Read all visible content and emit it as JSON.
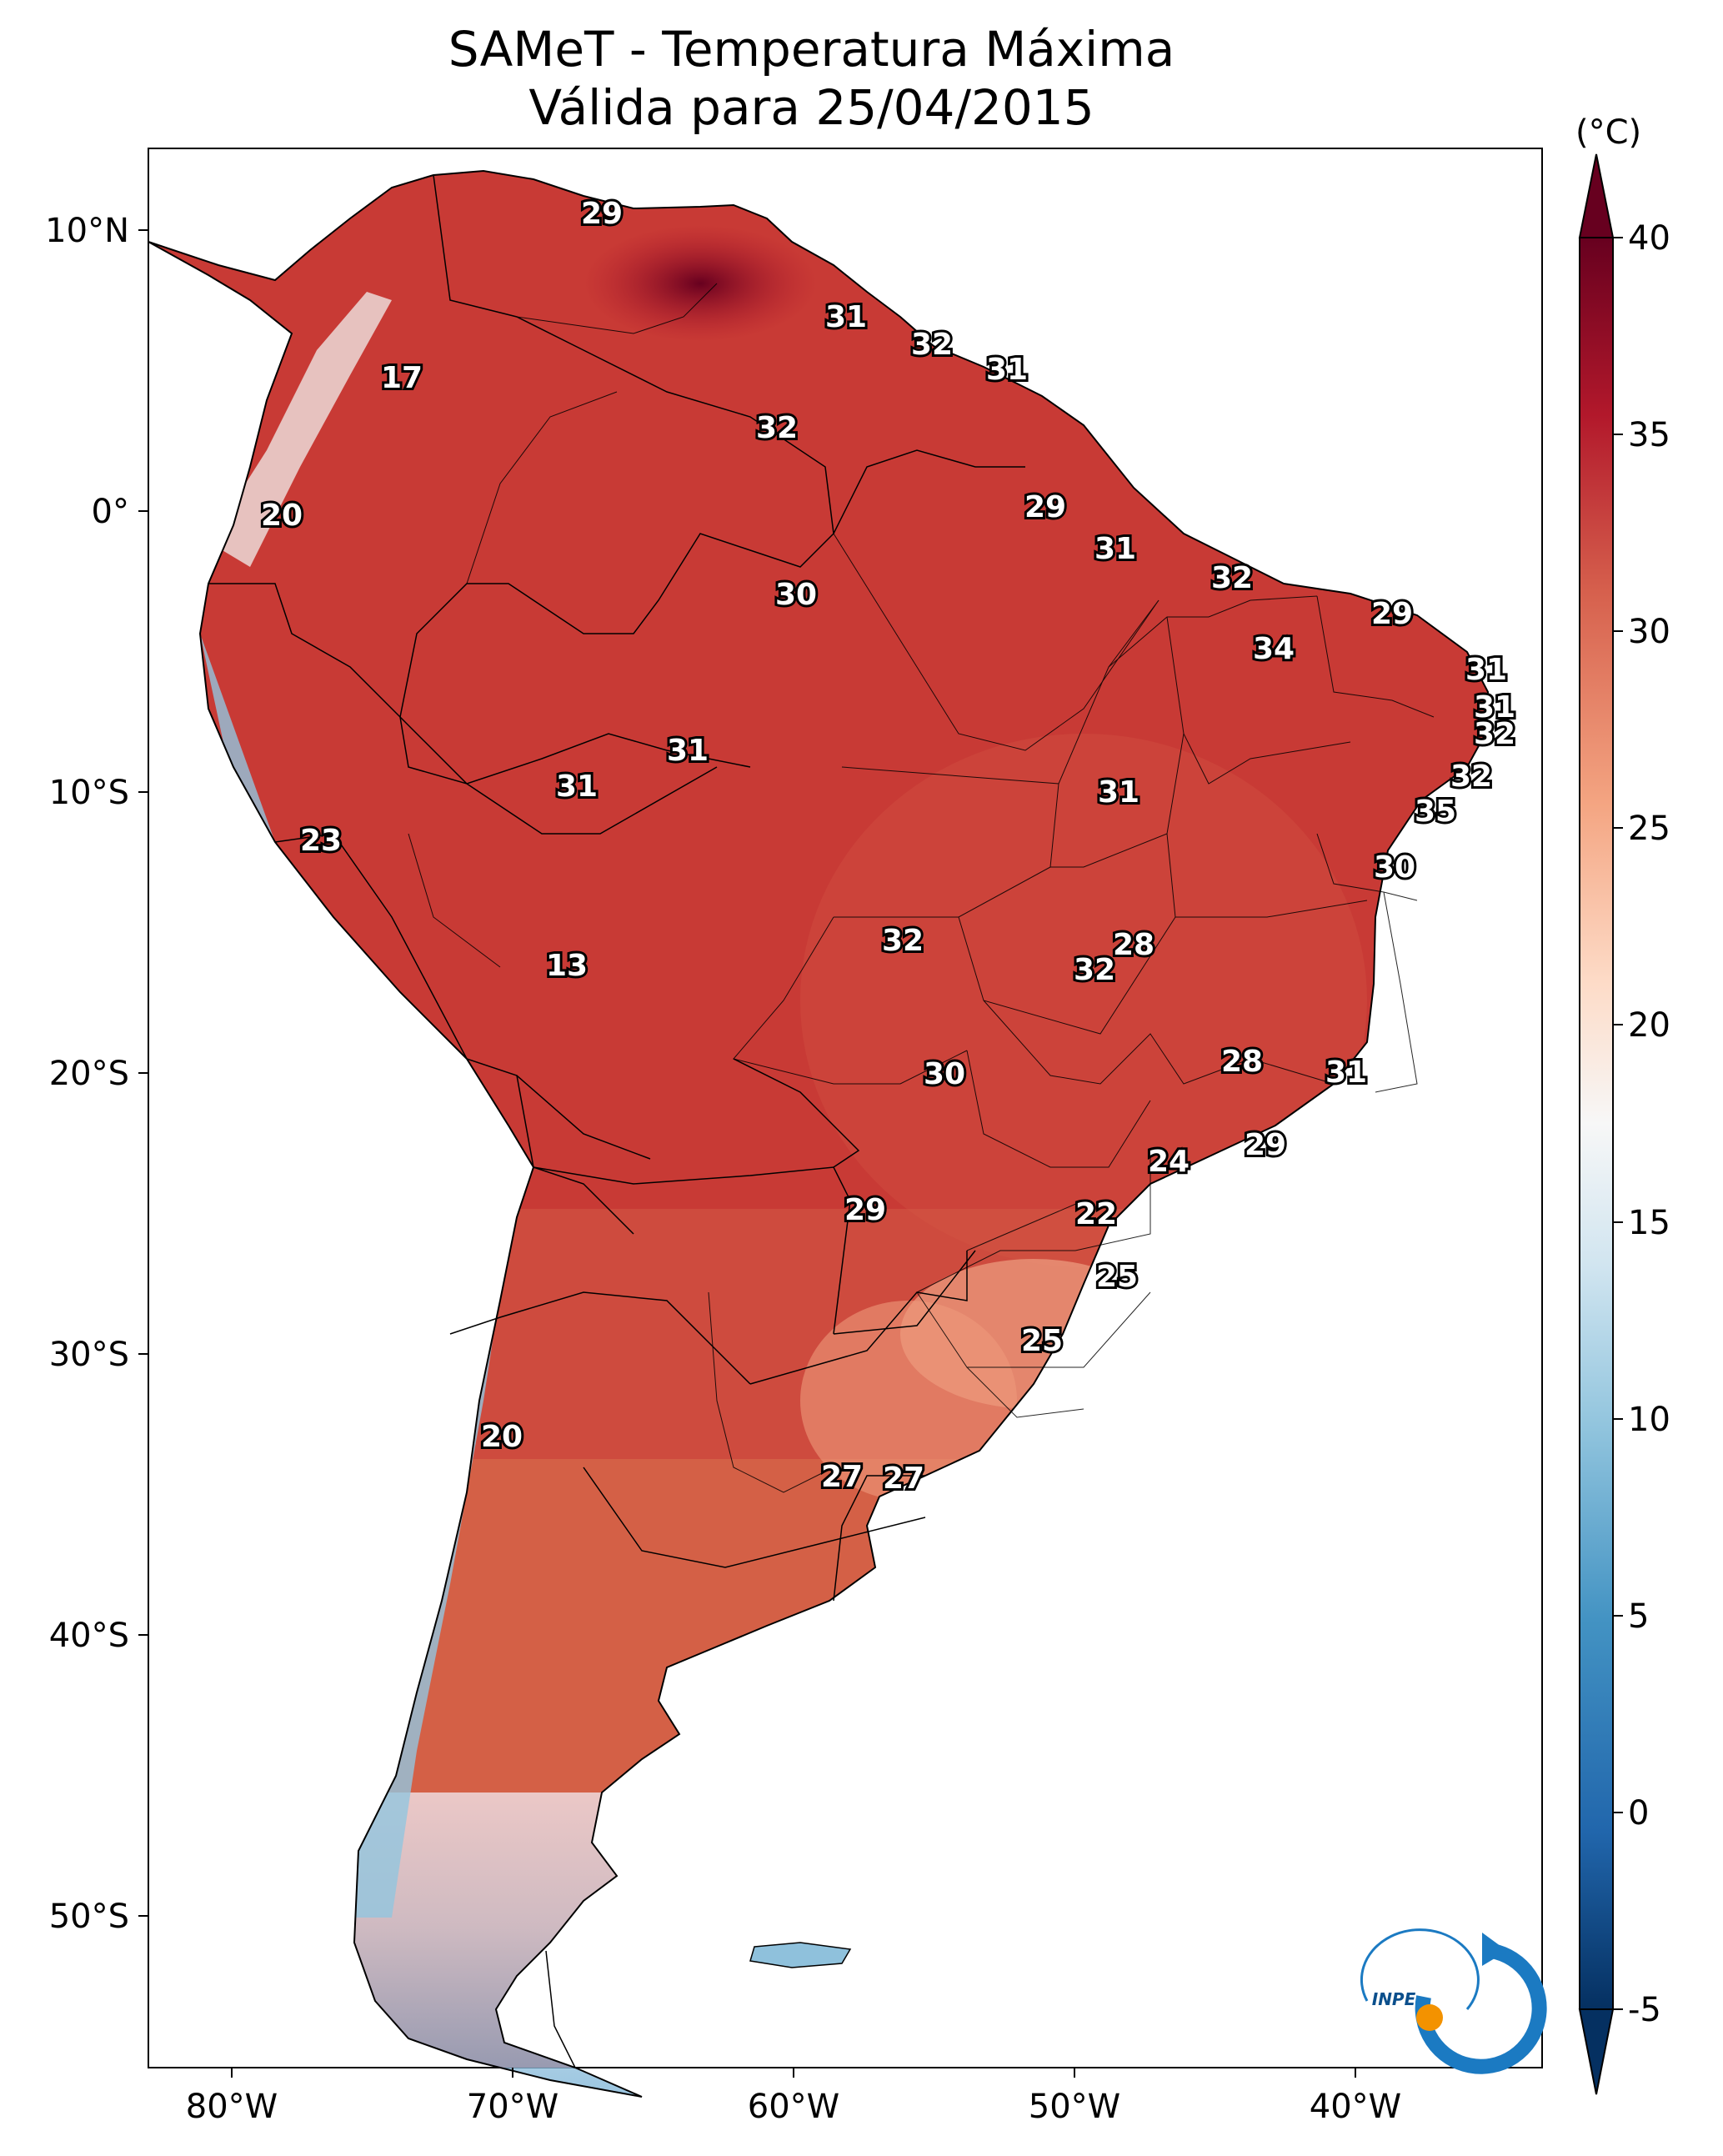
{
  "title": {
    "line1": "SAMeT - Temperatura Máxima",
    "line2": "Válida para 25/04/2015"
  },
  "axes": {
    "lon_ticks": [
      "80°W",
      "70°W",
      "60°W",
      "50°W",
      "40°W"
    ],
    "lat_ticks": [
      "10°N",
      "0°",
      "10°S",
      "20°S",
      "30°S",
      "40°S",
      "50°S"
    ]
  },
  "colorbar": {
    "unit_label": "(°C)",
    "ticks": [
      "40",
      "35",
      "30",
      "25",
      "20",
      "15",
      "10",
      "5",
      "0",
      "-5"
    ],
    "range": [
      -5,
      40
    ],
    "colors": [
      "#053061",
      "#2166ac",
      "#4393c3",
      "#92c5de",
      "#d1e5f0",
      "#f7f7f7",
      "#fddbc7",
      "#f4a582",
      "#d6604d",
      "#b2182b",
      "#67001f"
    ]
  },
  "logo": {
    "text": "INPE"
  },
  "city_values": [
    "29",
    "31",
    "32",
    "31",
    "17",
    "32",
    "20",
    "29",
    "31",
    "32",
    "30",
    "29",
    "34",
    "31",
    "31",
    "32",
    "31",
    "31",
    "32",
    "35",
    "23",
    "31",
    "30",
    "13",
    "28",
    "32",
    "32",
    "28",
    "31",
    "30",
    "29",
    "24",
    "22",
    "29",
    "25",
    "25",
    "20",
    "27",
    "27"
  ]
}
